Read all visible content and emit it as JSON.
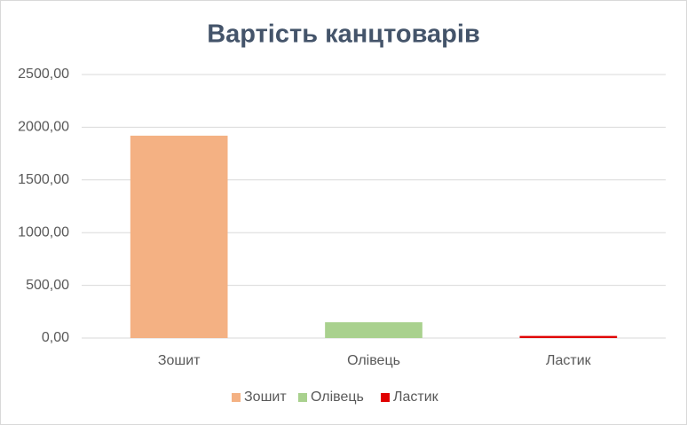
{
  "chart_data": {
    "type": "bar",
    "title": "Вартість канцтоварів",
    "categories": [
      "Зошит",
      "Олівець",
      "Ластик"
    ],
    "values": [
      1920,
      150,
      20
    ],
    "colors": [
      "#f4b183",
      "#a9d18e",
      "#e00000"
    ],
    "ylim": [
      0,
      2500
    ],
    "yticks": [
      {
        "value": 0,
        "label": "0,00"
      },
      {
        "value": 500,
        "label": "500,00"
      },
      {
        "value": 1000,
        "label": "1000,00"
      },
      {
        "value": 1500,
        "label": "1500,00"
      },
      {
        "value": 2000,
        "label": "2000,00"
      },
      {
        "value": 2500,
        "label": "2500,00"
      }
    ],
    "grid": true,
    "legend": "bottom"
  }
}
